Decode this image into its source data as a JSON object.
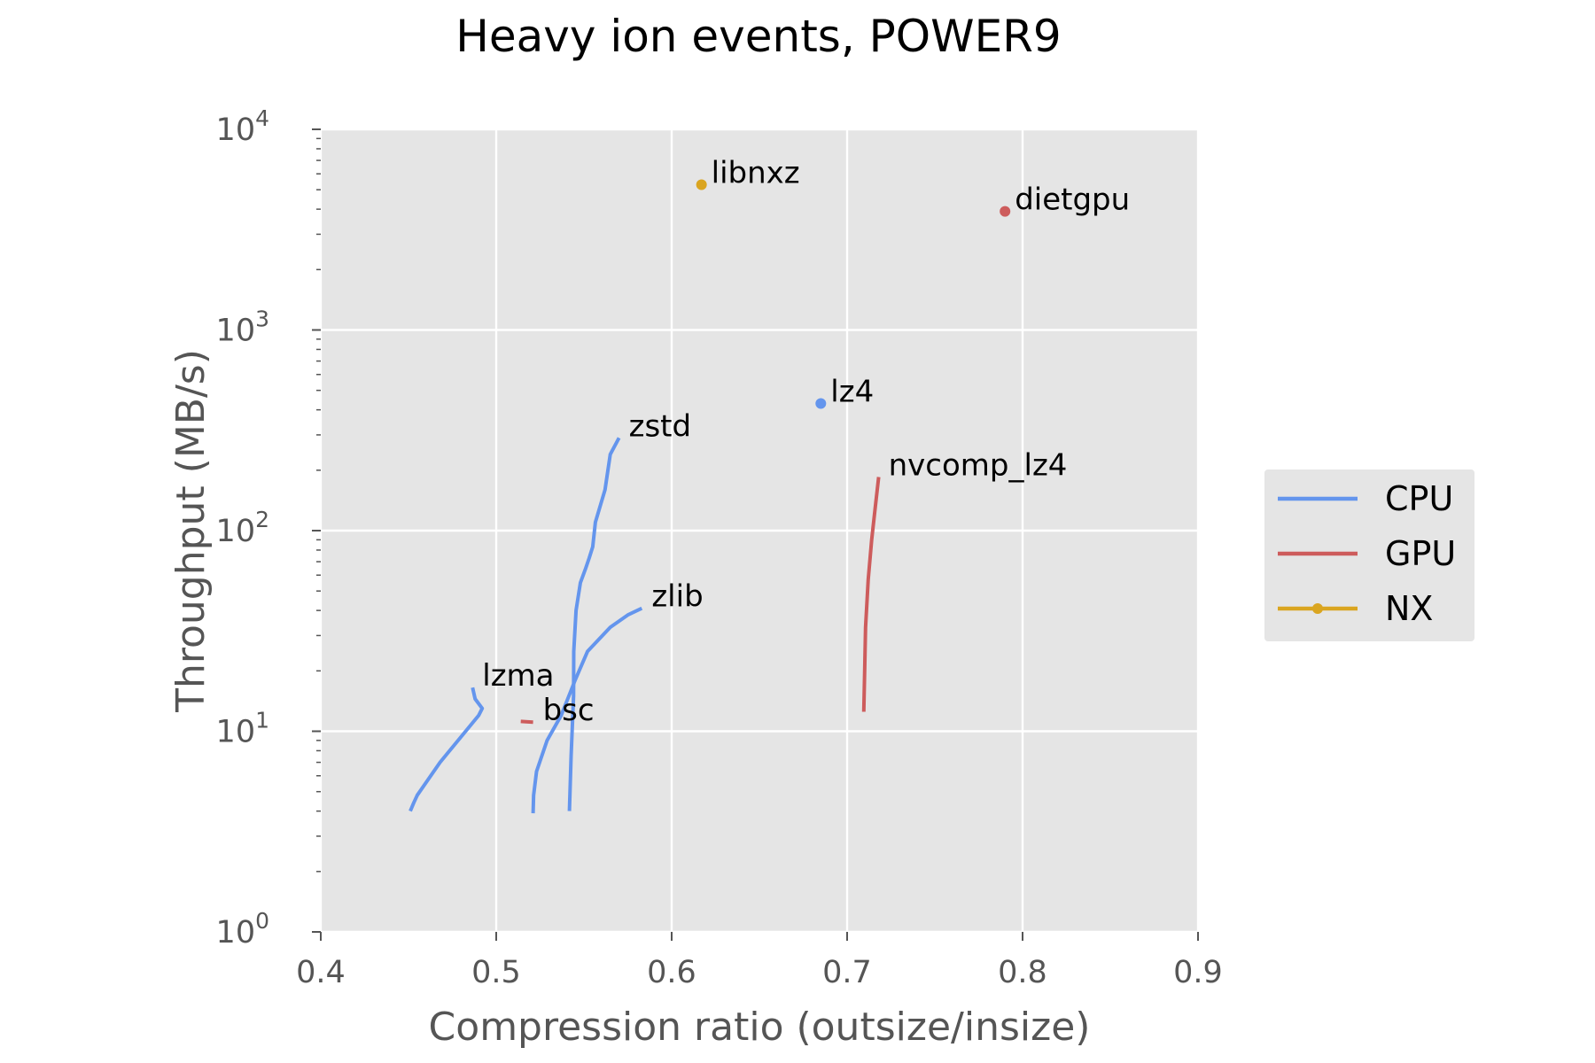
{
  "chart_data": {
    "type": "line",
    "title": "Heavy ion events, POWER9",
    "xlabel": "Compression ratio (outsize/insize)",
    "ylabel": "Throughput (MB/s)",
    "xlim": [
      0.4,
      0.9
    ],
    "ylim": [
      1,
      10000
    ],
    "yscale": "log",
    "grid": true,
    "legend_position": "right",
    "x_ticks": [
      "0.4",
      "0.5",
      "0.6",
      "0.7",
      "0.8",
      "0.9"
    ],
    "x_tick_values": [
      0.4,
      0.5,
      0.6,
      0.7,
      0.8,
      0.9
    ],
    "y_ticks": [
      {
        "base": "10",
        "exp": "0",
        "value": 1
      },
      {
        "base": "10",
        "exp": "1",
        "value": 10
      },
      {
        "base": "10",
        "exp": "2",
        "value": 100
      },
      {
        "base": "10",
        "exp": "3",
        "value": 1000
      },
      {
        "base": "10",
        "exp": "4",
        "value": 10000
      }
    ],
    "colors": {
      "CPU": "#6495ED",
      "GPU": "#CD5C5C",
      "NX": "#DAA520"
    },
    "legend": [
      {
        "name": "CPU",
        "color": "#6495ED",
        "marker": false
      },
      {
        "name": "GPU",
        "color": "#CD5C5C",
        "marker": false
      },
      {
        "name": "NX",
        "color": "#DAA520",
        "marker": true
      }
    ],
    "series": [
      {
        "label": "zstd",
        "group": "CPU",
        "x": [
          0.5417,
          0.5427,
          0.5441,
          0.5442,
          0.5455,
          0.548,
          0.551,
          0.553,
          0.555,
          0.5565,
          0.562,
          0.565,
          0.57
        ],
        "y": [
          4,
          7.5,
          15,
          25,
          40,
          55,
          65,
          73,
          83,
          110,
          160,
          240,
          290
        ]
      },
      {
        "label": "zlib",
        "group": "CPU",
        "x": [
          0.521,
          0.5213,
          0.523,
          0.529,
          0.537,
          0.545,
          0.552,
          0.565,
          0.575,
          0.583
        ],
        "y": [
          3.9,
          4.8,
          6.3,
          9,
          12,
          18,
          25,
          33,
          38,
          41
        ]
      },
      {
        "label": "lzma",
        "group": "CPU",
        "x": [
          0.451,
          0.453,
          0.455,
          0.468,
          0.49,
          0.492,
          0.488,
          0.4865
        ],
        "y": [
          4,
          4.4,
          4.8,
          7,
          12,
          13,
          14.5,
          16.5
        ]
      },
      {
        "label": "lz4",
        "group": "CPU",
        "x": [
          0.685
        ],
        "y": [
          430
        ]
      },
      {
        "label": "nvcomp_lz4",
        "group": "GPU",
        "x": [
          0.7095,
          0.71,
          0.7105,
          0.712,
          0.714,
          0.716,
          0.718
        ],
        "y": [
          12.5,
          20,
          33,
          57,
          90,
          130,
          185
        ]
      },
      {
        "label": "bsc",
        "group": "GPU",
        "x": [
          0.514,
          0.521
        ],
        "y": [
          11.2,
          11.1
        ]
      },
      {
        "label": "dietgpu",
        "group": "GPU",
        "x": [
          0.79
        ],
        "y": [
          3900
        ]
      },
      {
        "label": "libnxz",
        "group": "NX",
        "x": [
          0.617
        ],
        "y": [
          5300
        ]
      }
    ]
  }
}
